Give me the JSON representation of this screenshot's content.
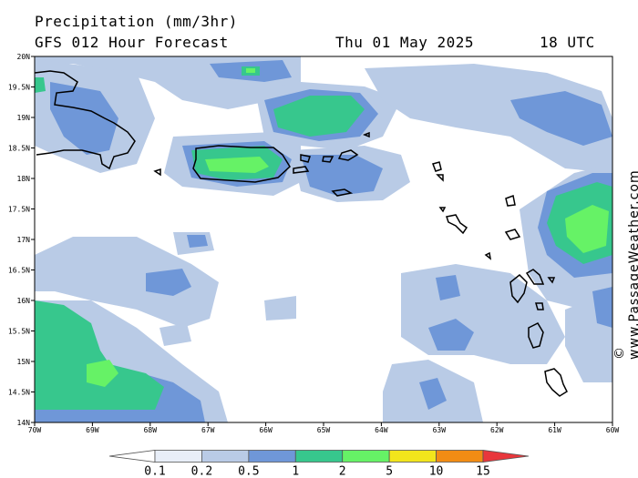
{
  "header": {
    "title": "Precipitation (mm/3hr)",
    "subtitle": "GFS 012 Hour Forecast",
    "date": "Thu 01 May 2025",
    "time": "18 UTC"
  },
  "credit": "© www.PassageWeather.com",
  "map": {
    "lon_range": [
      -70,
      -60
    ],
    "lat_range": [
      14,
      20
    ],
    "x_ticks": [
      "70W",
      "69W",
      "68W",
      "67W",
      "66W",
      "65W",
      "64W",
      "63W",
      "62W",
      "61W",
      "60W"
    ],
    "y_ticks": [
      "20N",
      "19.5N",
      "19N",
      "18.5N",
      "18N",
      "17.5N",
      "17N",
      "16.5N",
      "16N",
      "15.5N",
      "15N",
      "14.5N",
      "14N"
    ]
  },
  "legend": {
    "labels": [
      "0.1",
      "0.2",
      "0.5",
      "1",
      "2",
      "5",
      "10",
      "15"
    ],
    "colors": [
      "#ffffff",
      "#e8eef8",
      "#b9cbe6",
      "#6f97d8",
      "#37c78d",
      "#66f266",
      "#f2e51c",
      "#f28c14",
      "#e8373c"
    ]
  }
}
